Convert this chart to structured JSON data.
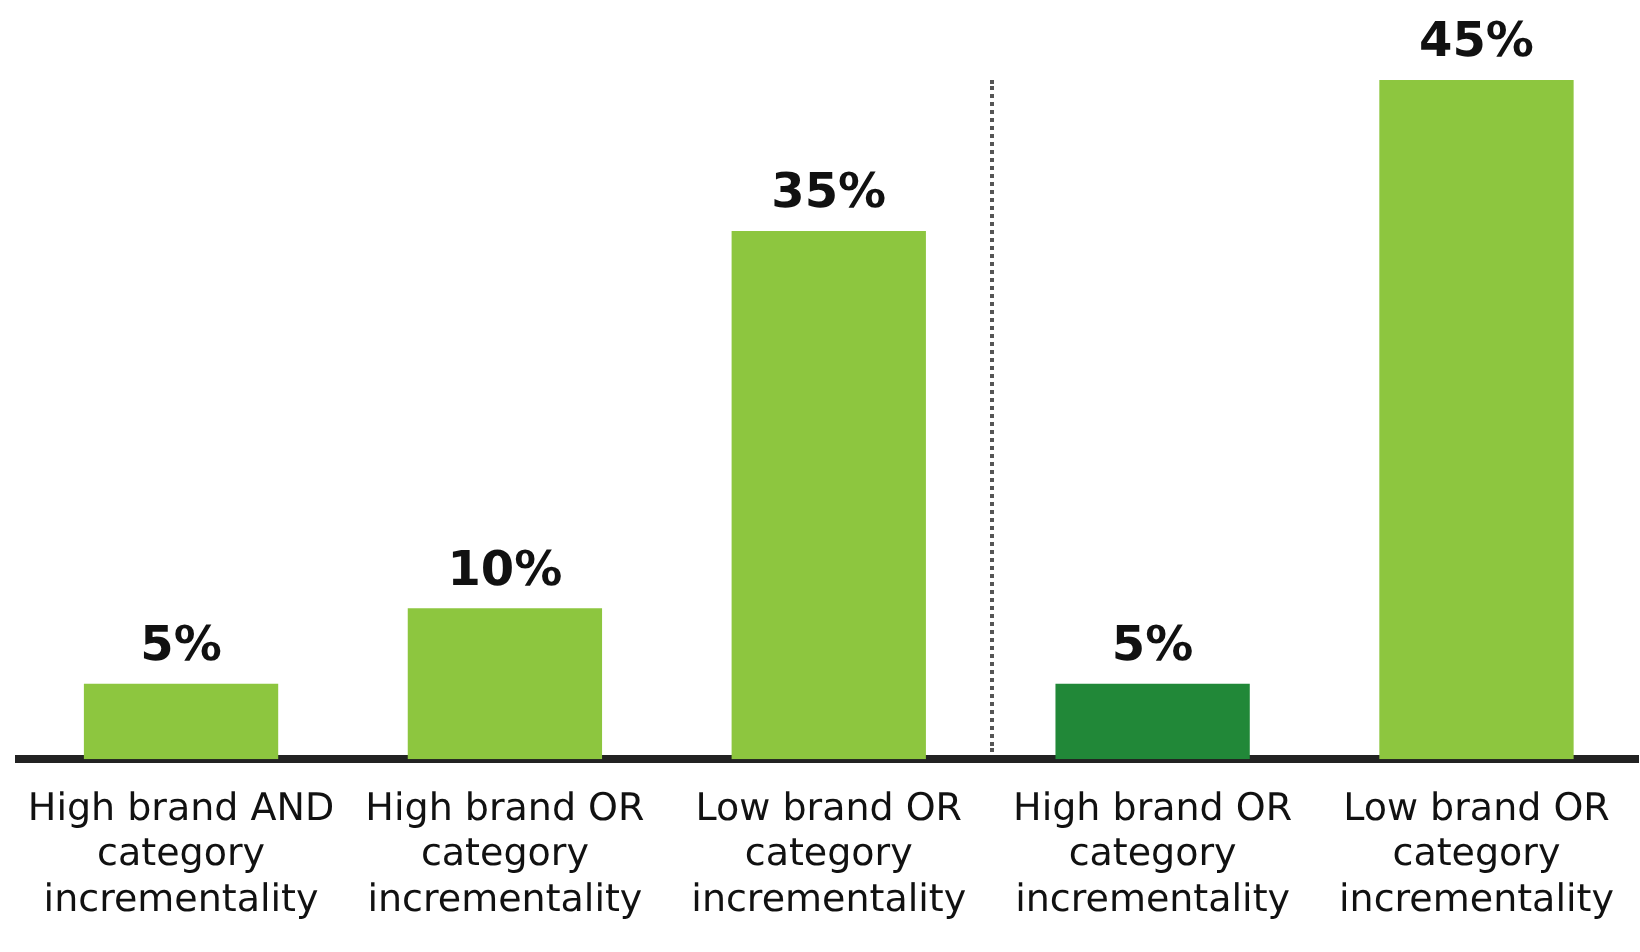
{
  "chart_data": {
    "type": "bar",
    "categories": [
      "High brand AND category incrementality",
      "High brand OR category incrementality",
      "Low brand OR category incrementality",
      "High brand OR category incrementality",
      "Low brand OR category incrementality"
    ],
    "values": [
      5,
      10,
      35,
      5,
      45
    ],
    "colors": [
      "#8dc63f",
      "#8dc63f",
      "#8dc63f",
      "#218838",
      "#8dc63f"
    ],
    "value_labels": [
      "5%",
      "10%",
      "35%",
      "5%",
      "45%"
    ],
    "grid": false,
    "legend": false
  }
}
